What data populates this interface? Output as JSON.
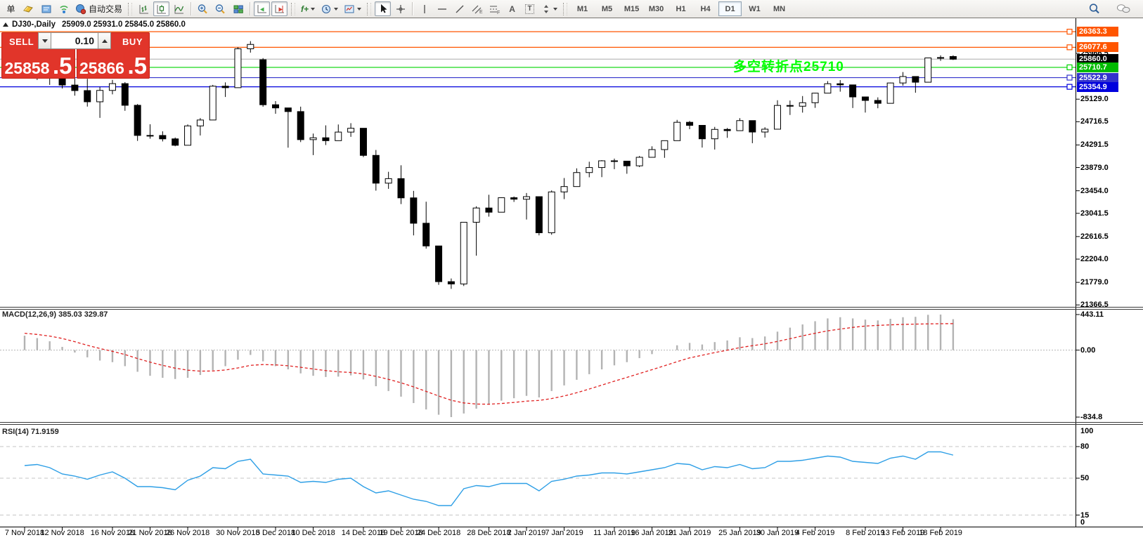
{
  "toolbar": {
    "order_button_label": "单",
    "autotrade_label": "自动交易",
    "indicator_tool_label": "f+",
    "text_tool_label": "A",
    "text_label_tool_label": "T",
    "timeframes": [
      "M1",
      "M5",
      "M15",
      "M30",
      "H1",
      "H4",
      "D1",
      "W1",
      "MN"
    ],
    "active_timeframe": "D1"
  },
  "chart": {
    "title": "DJ30-,Daily",
    "ohlc": "25909.0 25931.0 25845.0 25860.0",
    "annotation": "多空转折点25710",
    "annotation_color": "#00ff00",
    "price_ticks": [
      25966.5,
      25129.0,
      24716.5,
      24291.5,
      23879.0,
      23454.0,
      23041.5,
      22616.5,
      22204.0,
      21779.0,
      21366.5
    ],
    "hlines": [
      {
        "value": 26363.3,
        "line_color": "#ff5500",
        "badge_bg": "#ff5500",
        "is_current_price": false
      },
      {
        "value": 26077.6,
        "line_color": "#ff5500",
        "badge_bg": "#ff5500",
        "is_current_price": false
      },
      {
        "value": 25860.0,
        "line_color": "#bbbbbb",
        "badge_bg": "#000000",
        "is_current_price": true
      },
      {
        "value": 25710.7,
        "line_color": "#00d400",
        "badge_bg": "#00bb00",
        "is_current_price": false
      },
      {
        "value": 25522.9,
        "line_color": "#3333cc",
        "badge_bg": "#3333cc",
        "is_current_price": false
      },
      {
        "value": 25354.9,
        "line_color": "#0000dd",
        "badge_bg": "#0000dd",
        "is_current_price": false
      }
    ]
  },
  "trade_panel": {
    "sell_label": "SELL",
    "buy_label": "BUY",
    "volume": "0.10",
    "sell_price_int": "25858",
    "sell_price_dec": ".5",
    "buy_price_int": "25866",
    "buy_price_dec": ".5"
  },
  "indicators": {
    "macd_label": "MACD(12,26,9) 385.03 329.87",
    "macd_axis": [
      {
        "value": 443.11,
        "label": "443.11"
      },
      {
        "value": 0,
        "label": "0.00"
      },
      {
        "value": -834.8,
        "label": "-834.8"
      }
    ],
    "rsi_label": "RSI(14) 71.9159",
    "rsi_axis": [
      100,
      80,
      50,
      15,
      0
    ]
  },
  "chart_data": {
    "type": "candlestick",
    "symbol": "DJ30-",
    "timeframe": "Daily",
    "current_ohlc": {
      "open": 25909.0,
      "high": 25931.0,
      "low": 25845.0,
      "close": 25860.0
    },
    "x_labels": [
      {
        "text": "7 Nov 2018",
        "bar": 0
      },
      {
        "text": "12 Nov 2018",
        "bar": 3
      },
      {
        "text": "16 Nov 2018",
        "bar": 7
      },
      {
        "text": "21 Nov 2018",
        "bar": 10
      },
      {
        "text": "26 Nov 2018",
        "bar": 13
      },
      {
        "text": "30 Nov 2018",
        "bar": 17
      },
      {
        "text": "5 Dec 2018",
        "bar": 20
      },
      {
        "text": "10 Dec 2018",
        "bar": 23
      },
      {
        "text": "14 Dec 2018",
        "bar": 27
      },
      {
        "text": "19 Dec 2018",
        "bar": 30
      },
      {
        "text": "24 Dec 2018",
        "bar": 33
      },
      {
        "text": "28 Dec 2018",
        "bar": 37
      },
      {
        "text": "2 Jan 2019",
        "bar": 40
      },
      {
        "text": "7 Jan 2019",
        "bar": 43
      },
      {
        "text": "11 Jan 2019",
        "bar": 47
      },
      {
        "text": "16 Jan 2019",
        "bar": 50
      },
      {
        "text": "21 Jan 2019",
        "bar": 53
      },
      {
        "text": "25 Jan 2019",
        "bar": 57
      },
      {
        "text": "30 Jan 2019",
        "bar": 60
      },
      {
        "text": "4 Feb 2019",
        "bar": 63
      },
      {
        "text": "8 Feb 2019",
        "bar": 67
      },
      {
        "text": "13 Feb 2019",
        "bar": 70
      },
      {
        "text": "18 Feb 2019",
        "bar": 73
      }
    ],
    "candles": [
      [
        25764,
        26277,
        25764,
        26180
      ],
      [
        26180,
        26278,
        25480,
        26191
      ],
      [
        26191,
        26191,
        25390,
        25989
      ],
      [
        25989,
        26015,
        25324,
        25387
      ],
      [
        25387,
        25511,
        25193,
        25286
      ],
      [
        25286,
        25501,
        24993,
        25081
      ],
      [
        25081,
        25354,
        24787,
        25289
      ],
      [
        25289,
        25482,
        25217,
        25413
      ],
      [
        25413,
        25441,
        24916,
        25017
      ],
      [
        25017,
        25040,
        24366,
        24466
      ],
      [
        24466,
        24669,
        24406,
        24465
      ],
      [
        24465,
        24541,
        24356,
        24403
      ],
      [
        24403,
        24428,
        24268,
        24286
      ],
      [
        24286,
        24667,
        24286,
        24640
      ],
      [
        24640,
        24784,
        24465,
        24748
      ],
      [
        24748,
        25390,
        24748,
        25366
      ],
      [
        25366,
        25436,
        25169,
        25339
      ],
      [
        25339,
        26080,
        25339,
        26050
      ],
      [
        26050,
        26190,
        25980,
        26130
      ],
      [
        25850,
        25880,
        24990,
        25027
      ],
      [
        25027,
        25093,
        24862,
        24969
      ],
      [
        24969,
        24969,
        24242,
        24902
      ],
      [
        24902,
        24992,
        24344,
        24389
      ],
      [
        24389,
        24500,
        24106,
        24423
      ],
      [
        24423,
        24650,
        24290,
        24370
      ],
      [
        24370,
        24666,
        24370,
        24527
      ],
      [
        24527,
        24690,
        24440,
        24597
      ],
      [
        24597,
        24597,
        24070,
        24101
      ],
      [
        24101,
        24200,
        23456,
        23593
      ],
      [
        23593,
        23801,
        23489,
        23676
      ],
      [
        23676,
        23920,
        23211,
        23324
      ],
      [
        23324,
        23452,
        22638,
        22860
      ],
      [
        22860,
        23254,
        22396,
        22445
      ],
      [
        22445,
        22446,
        21734,
        21792
      ],
      [
        21792,
        21850,
        21660,
        21750
      ],
      [
        21750,
        22878,
        21712,
        22878
      ],
      [
        22878,
        23170,
        22267,
        23139
      ],
      [
        23139,
        23381,
        22981,
        23062
      ],
      [
        23062,
        23333,
        23062,
        23327
      ],
      [
        23327,
        23350,
        23250,
        23300
      ],
      [
        23300,
        23413,
        22928,
        23346
      ],
      [
        23346,
        23346,
        22638,
        22686
      ],
      [
        22686,
        23460,
        22650,
        23433
      ],
      [
        23433,
        23687,
        23301,
        23531
      ],
      [
        23531,
        23864,
        23531,
        23787
      ],
      [
        23787,
        23985,
        23700,
        23879
      ],
      [
        23879,
        24014,
        23703,
        24002
      ],
      [
        24002,
        24042,
        23849,
        23996
      ],
      [
        23996,
        23996,
        23765,
        23910
      ],
      [
        23910,
        24090,
        23887,
        24066
      ],
      [
        24066,
        24266,
        24066,
        24207
      ],
      [
        24207,
        24371,
        24056,
        24370
      ],
      [
        24370,
        24750,
        24370,
        24706
      ],
      [
        24706,
        24730,
        24580,
        24650
      ],
      [
        24650,
        24650,
        24244,
        24404
      ],
      [
        24404,
        24622,
        24208,
        24576
      ],
      [
        24576,
        24602,
        24422,
        24553
      ],
      [
        24553,
        24782,
        24553,
        24737
      ],
      [
        24737,
        24737,
        24324,
        24528
      ],
      [
        24528,
        24616,
        24427,
        24580
      ],
      [
        24580,
        25109,
        24580,
        25014
      ],
      [
        25014,
        25104,
        24840,
        25000
      ],
      [
        25000,
        25186,
        24883,
        25064
      ],
      [
        25064,
        25245,
        24970,
        25239
      ],
      [
        25239,
        25459,
        25239,
        25411
      ],
      [
        25411,
        25478,
        25266,
        25390
      ],
      [
        25390,
        25390,
        24967,
        25170
      ],
      [
        25170,
        25170,
        24884,
        25106
      ],
      [
        25106,
        25162,
        24963,
        25053
      ],
      [
        25053,
        25431,
        25053,
        25425
      ],
      [
        25425,
        25625,
        25375,
        25543
      ],
      [
        25543,
        25543,
        25247,
        25439
      ],
      [
        25439,
        25883,
        25439,
        25883
      ],
      [
        25883,
        25930,
        25830,
        25890
      ],
      [
        25909,
        25931,
        25845,
        25860
      ]
    ],
    "macd": {
      "histogram": [
        180,
        150,
        110,
        40,
        -30,
        -90,
        -130,
        -150,
        -200,
        -270,
        -320,
        -345,
        -360,
        -345,
        -310,
        -250,
        -200,
        -120,
        -60,
        -140,
        -200,
        -240,
        -290,
        -320,
        -335,
        -330,
        -315,
        -365,
        -450,
        -510,
        -580,
        -660,
        -740,
        -805,
        -834.8,
        -790,
        -730,
        -680,
        -630,
        -600,
        -570,
        -590,
        -510,
        -440,
        -370,
        -300,
        -240,
        -190,
        -150,
        -100,
        -50,
        0,
        60,
        90,
        70,
        100,
        120,
        160,
        150,
        170,
        230,
        280,
        320,
        360,
        395,
        410,
        395,
        380,
        370,
        390,
        410,
        415,
        440,
        443.1,
        385
      ],
      "signal": [
        210,
        195,
        175,
        145,
        105,
        60,
        20,
        -15,
        -55,
        -105,
        -150,
        -190,
        -225,
        -250,
        -262,
        -260,
        -248,
        -222,
        -190,
        -180,
        -184,
        -195,
        -214,
        -235,
        -255,
        -270,
        -279,
        -296,
        -327,
        -364,
        -407,
        -458,
        -514,
        -572,
        -625,
        -658,
        -672,
        -674,
        -665,
        -652,
        -636,
        -627,
        -604,
        -571,
        -531,
        -485,
        -436,
        -387,
        -340,
        -292,
        -244,
        -195,
        -144,
        -97,
        -64,
        -31,
        -1,
        31,
        55,
        78,
        108,
        142,
        178,
        210,
        240,
        262,
        283,
        300,
        308,
        315,
        320,
        324,
        327,
        329,
        329.87
      ]
    },
    "rsi": [
      62,
      63,
      60,
      54,
      52,
      49,
      53,
      56,
      50,
      42,
      42,
      41,
      39,
      48,
      52,
      60,
      59,
      66,
      68,
      54,
      53,
      52,
      46,
      47,
      46,
      49,
      50,
      42,
      36,
      38,
      34,
      30,
      28,
      24,
      24,
      40,
      43,
      42,
      45,
      45,
      45,
      38,
      47,
      49,
      52,
      53,
      55,
      55,
      54,
      56,
      58,
      60,
      64,
      63,
      58,
      61,
      60,
      63,
      59,
      60,
      66,
      66,
      67,
      69,
      71,
      70,
      66,
      65,
      64,
      69,
      71,
      68,
      75,
      75,
      71.92
    ]
  }
}
